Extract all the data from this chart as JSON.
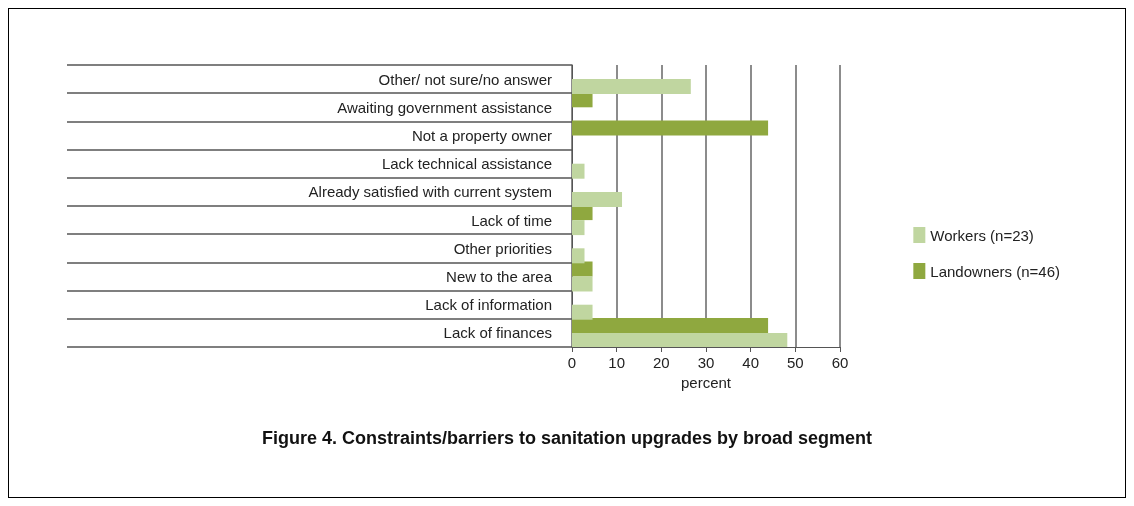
{
  "chart_data": {
    "type": "bar",
    "orientation": "horizontal",
    "title": "Figure 4. Constraints/barriers to sanitation upgrades by broad segment",
    "xlabel": "percent",
    "categories": [
      "Other/ not sure/no answer",
      "Awaiting government assistance",
      "Not a property owner",
      "Lack technical assistance",
      "Already satisfied with current system",
      "Lack of time",
      "Other priorities",
      "New to the area",
      "Lack of information",
      "Lack of finances"
    ],
    "series": [
      {
        "name": "Workers (n=23)",
        "color": "#c0d6a0",
        "values": [
          26.6,
          null,
          null,
          2.8,
          11.2,
          2.8,
          2.8,
          4.6,
          4.6,
          48.2
        ]
      },
      {
        "name": "Landowners (n=46)",
        "color": "#8fa83f",
        "values": [
          null,
          4.6,
          43.9,
          null,
          null,
          4.6,
          null,
          4.6,
          null,
          43.9
        ]
      }
    ],
    "xlim": [
      0,
      60
    ],
    "xticks": [
      0,
      10,
      20,
      30,
      40,
      50,
      60
    ],
    "grid": "x",
    "legend": "right"
  }
}
